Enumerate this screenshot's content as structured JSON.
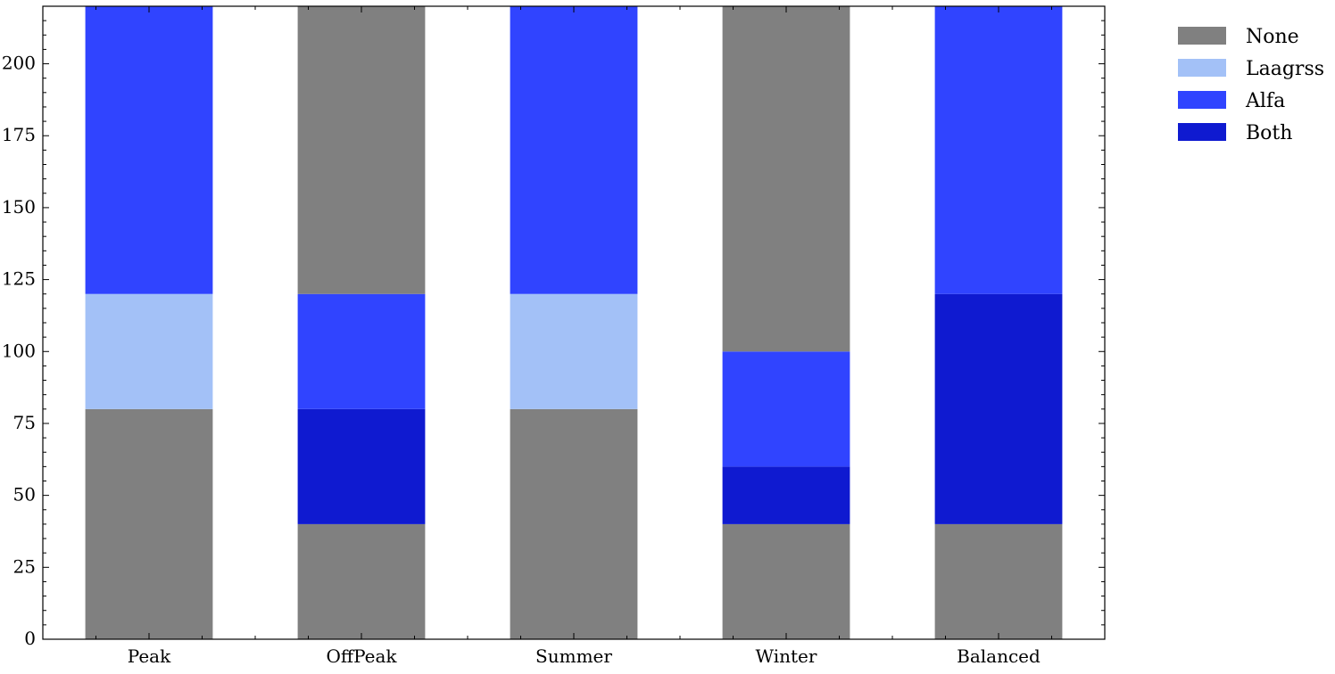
{
  "chart_data": {
    "type": "bar",
    "stacked": true,
    "categories": [
      "Peak",
      "OffPeak",
      "Summer",
      "Winter",
      "Balanced"
    ],
    "stacks": [
      [
        {
          "name": "None",
          "value": 80
        },
        {
          "name": "Laagrss",
          "value": 40
        },
        {
          "name": "Alfa",
          "value": 120
        }
      ],
      [
        {
          "name": "None",
          "value": 40
        },
        {
          "name": "Both",
          "value": 40
        },
        {
          "name": "Alfa",
          "value": 40
        },
        {
          "name": "None",
          "value": 120
        }
      ],
      [
        {
          "name": "None",
          "value": 80
        },
        {
          "name": "Laagrss",
          "value": 40
        },
        {
          "name": "Alfa",
          "value": 120
        }
      ],
      [
        {
          "name": "None",
          "value": 40
        },
        {
          "name": "Both",
          "value": 20
        },
        {
          "name": "Alfa",
          "value": 40
        },
        {
          "name": "None",
          "value": 140
        }
      ],
      [
        {
          "name": "None",
          "value": 40
        },
        {
          "name": "Both",
          "value": 80
        },
        {
          "name": "Alfa",
          "value": 120
        }
      ]
    ],
    "legend": [
      {
        "name": "None",
        "color": "#808080"
      },
      {
        "name": "Laagrss",
        "color": "#a3c1f7"
      },
      {
        "name": "Alfa",
        "color": "#3044ff"
      },
      {
        "name": "Both",
        "color": "#0f1ad0"
      }
    ],
    "colors": {
      "None": "#808080",
      "Laagrss": "#a3c1f7",
      "Alfa": "#3044ff",
      "Both": "#0f1ad0"
    },
    "yticks": [
      0,
      25,
      50,
      75,
      100,
      125,
      150,
      175,
      200
    ],
    "ylim": [
      0,
      220
    ],
    "legend_position": "top-right, outside plot",
    "grid": false,
    "title": "",
    "xlabel": "",
    "ylabel": ""
  }
}
